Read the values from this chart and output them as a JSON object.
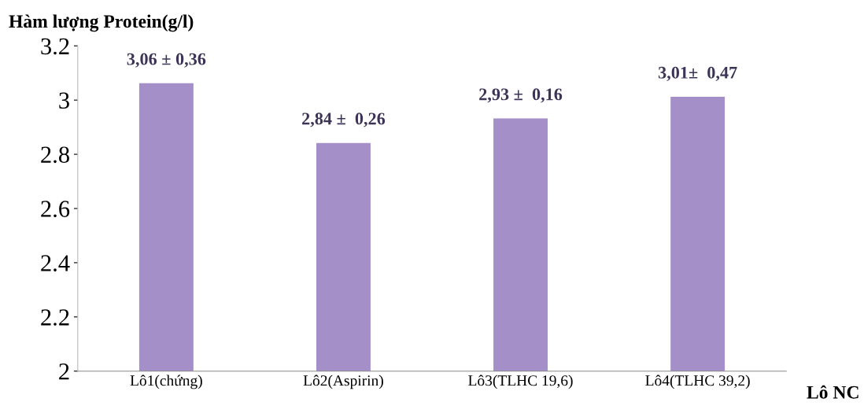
{
  "chart_data": {
    "type": "bar",
    "ylabel": "Hàm lượng Protein(g/l)",
    "xlabel": "Lô NC",
    "categories": [
      "Lô1(chứng)",
      "Lô2(Aspirin)",
      "Lô3(TLHC 19,6)",
      "Lô4(TLHC 39,2)"
    ],
    "values": [
      3.06,
      2.84,
      2.93,
      3.01
    ],
    "value_labels": [
      "3,06 ± 0,36",
      "2,84 ±  0,26",
      "2,93 ±  0,16",
      "3,01±  0,47"
    ],
    "color": "#a48fc8",
    "ylim": [
      2,
      3.2
    ],
    "yticks": [
      2,
      2.2,
      2.4,
      2.6,
      2.8,
      3,
      3.2
    ],
    "grid": false,
    "legend": false
  }
}
